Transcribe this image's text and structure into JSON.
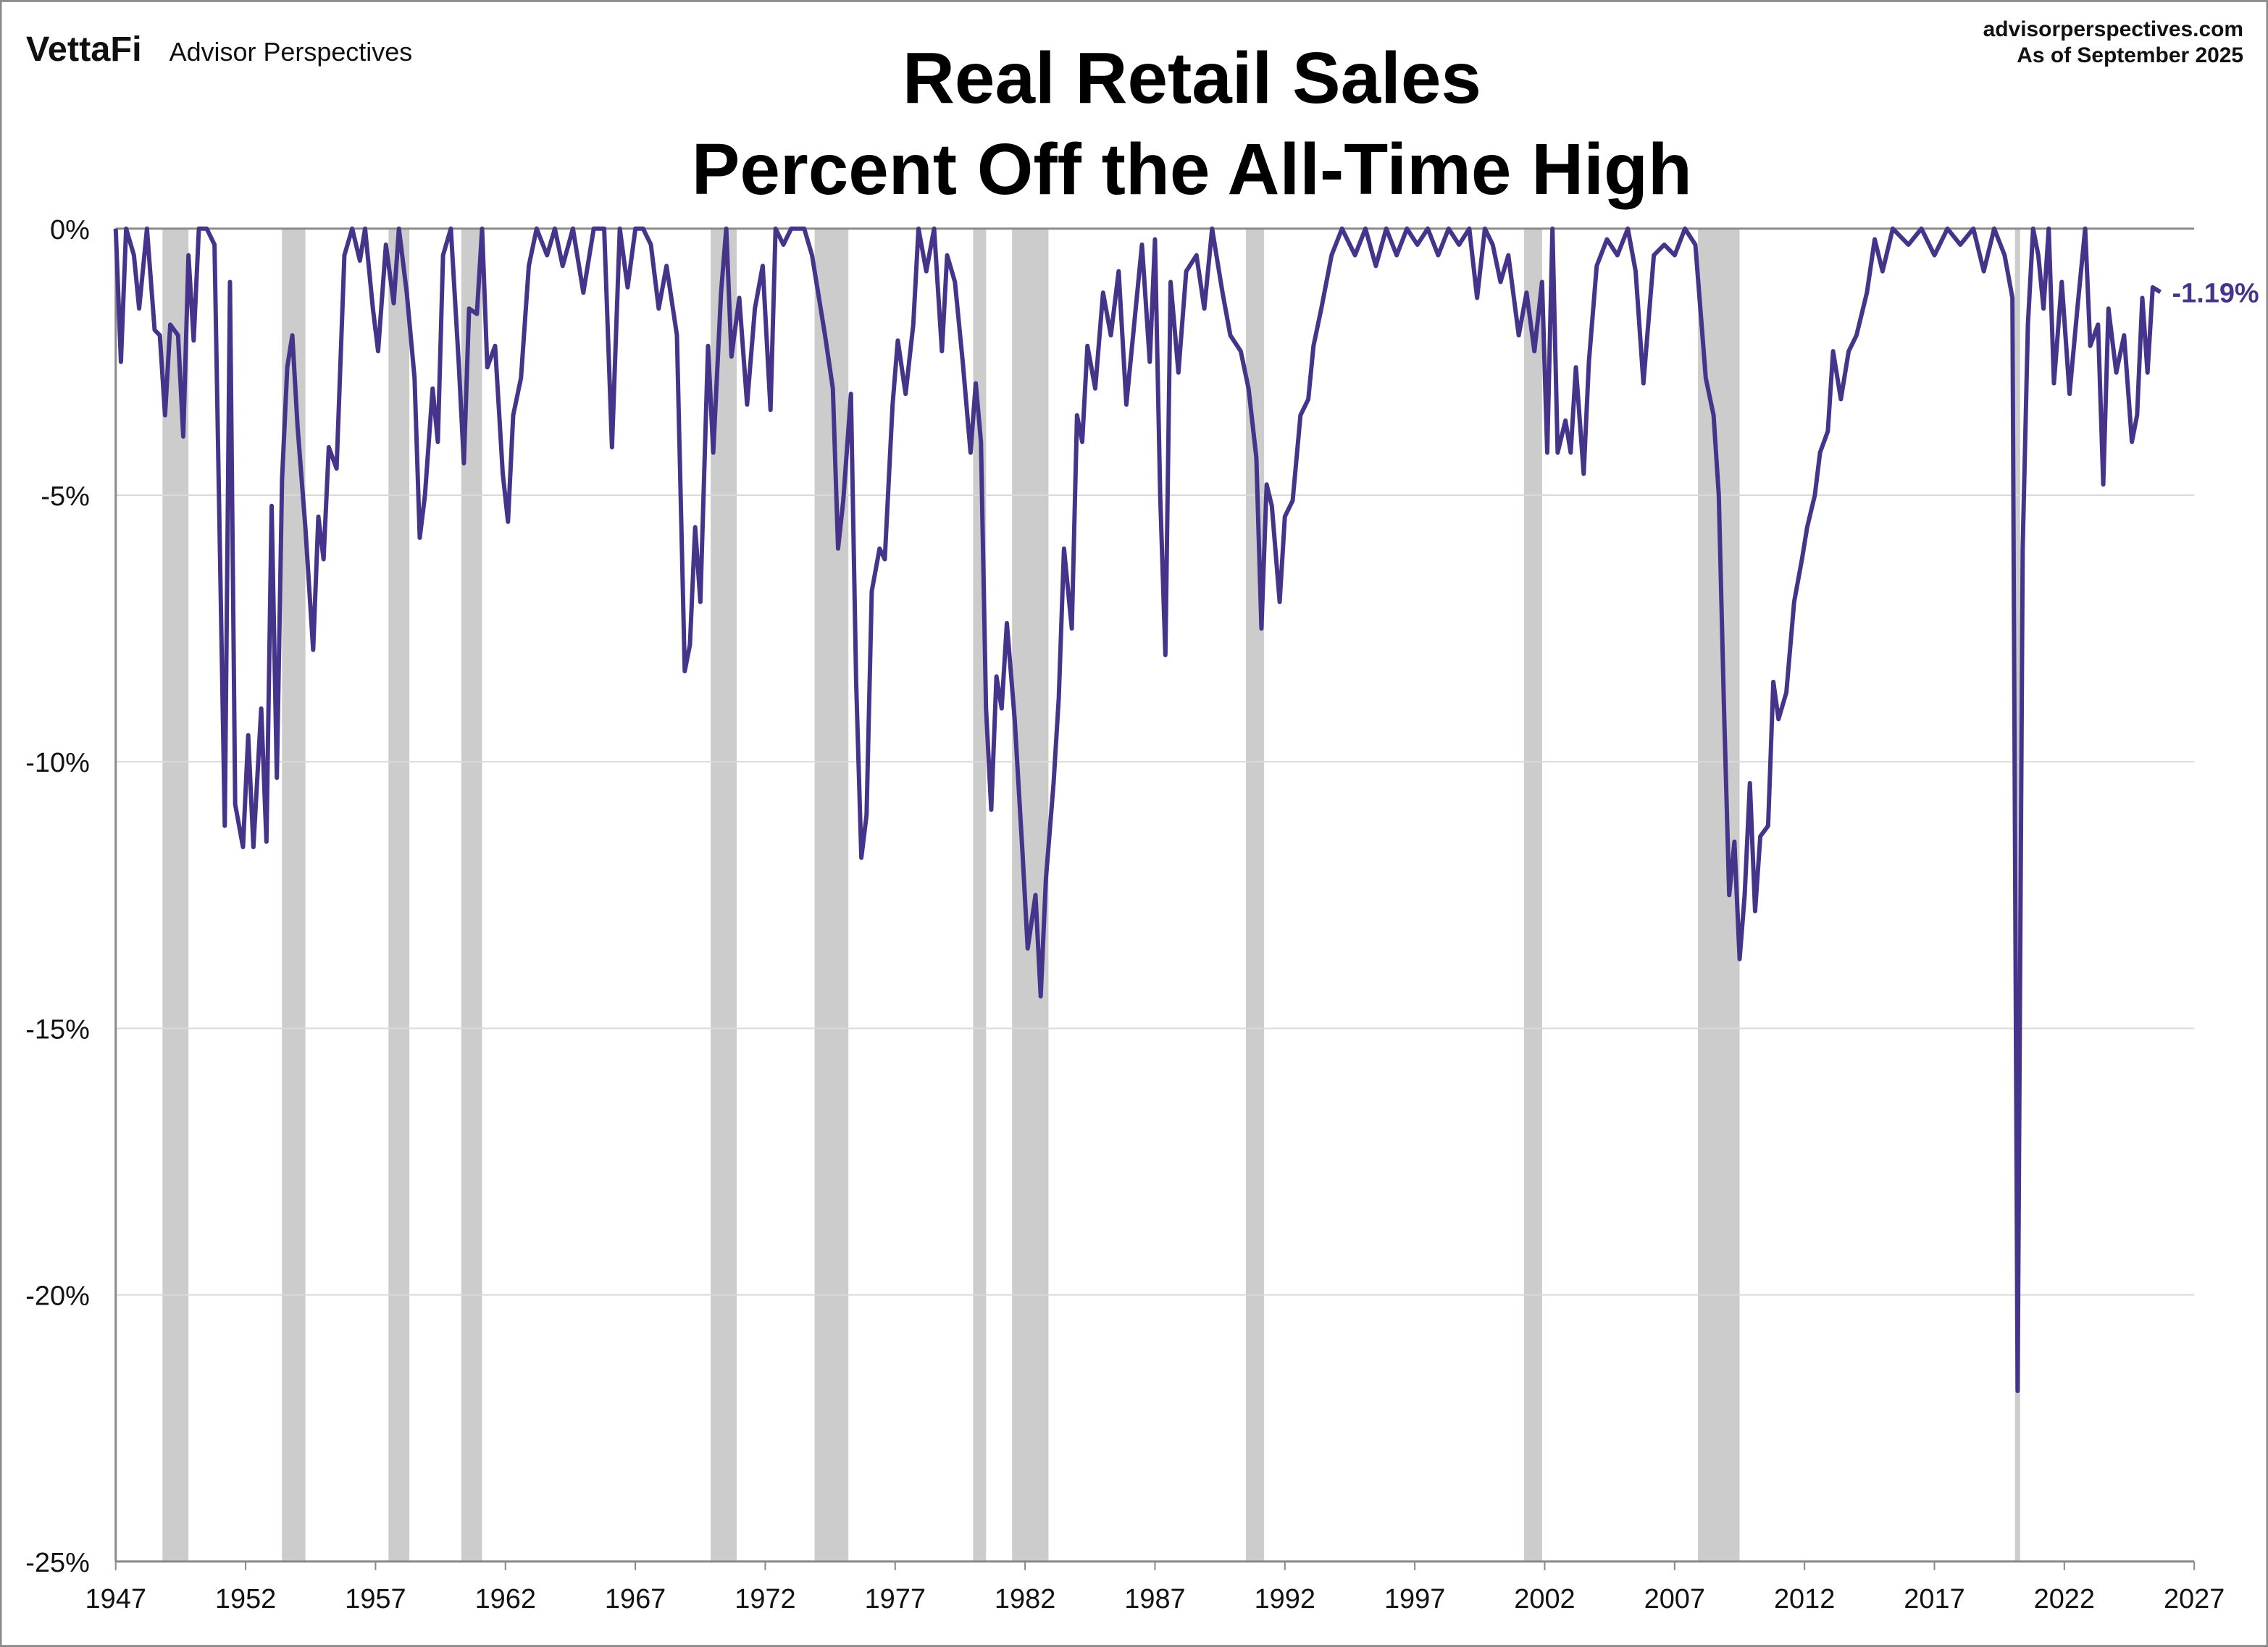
{
  "header": {
    "logo_text": "VettaFi",
    "brand": "Advisor Perspectives",
    "site": "advisorperspectives.com",
    "as_of": "As of September 2025"
  },
  "chart_data": {
    "type": "line",
    "title": "Real Retail Sales",
    "subtitle": "Percent Off the All-Time High",
    "xlim": [
      1947,
      2027
    ],
    "ylim": [
      -25,
      0
    ],
    "x_ticks": [
      1947,
      1952,
      1957,
      1962,
      1967,
      1972,
      1977,
      1982,
      1987,
      1992,
      1997,
      2002,
      2007,
      2012,
      2017,
      2022,
      2027
    ],
    "y_ticks": [
      0,
      -5,
      -10,
      -15,
      -20,
      -25
    ],
    "y_tick_labels": [
      "0%",
      "-5%",
      "-10%",
      "-15%",
      "-20%",
      "-25%"
    ],
    "grid": "horizontal",
    "line_color": "#45348a",
    "recession_color": "#cccccc",
    "last_value_label": "-1.19%",
    "recessions": [
      [
        1948.8,
        1949.8
      ],
      [
        1953.4,
        1954.3
      ],
      [
        1957.5,
        1958.3
      ],
      [
        1960.3,
        1961.1
      ],
      [
        1969.9,
        1970.9
      ],
      [
        1973.9,
        1975.2
      ],
      [
        1980.0,
        1980.5
      ],
      [
        1981.5,
        1982.9
      ],
      [
        1990.5,
        1991.2
      ],
      [
        2001.2,
        2001.9
      ],
      [
        2007.9,
        2009.5
      ],
      [
        2020.1,
        2020.3
      ]
    ],
    "series": [
      {
        "x": [
          1947.0,
          1947.2,
          1947.4,
          1947.7,
          1947.9,
          1948.2,
          1948.5,
          1948.7,
          1948.9,
          1949.1,
          1949.4,
          1949.6,
          1949.8,
          1950.0,
          1950.2,
          1950.5,
          1950.8,
          1951.2,
          1951.4,
          1951.6,
          1951.9,
          1952.1,
          1952.3,
          1952.6,
          1952.8,
          1953.0,
          1953.2,
          1953.4,
          1953.6,
          1953.8,
          1954.0,
          1954.3,
          1954.6,
          1954.8,
          1955.0,
          1955.2,
          1955.5,
          1955.8,
          1956.1,
          1956.4,
          1956.6,
          1956.9,
          1957.1,
          1957.4,
          1957.7,
          1957.9,
          1958.2,
          1958.5,
          1958.7,
          1958.9,
          1959.2,
          1959.4,
          1959.6,
          1959.9,
          1960.2,
          1960.4,
          1960.6,
          1960.9,
          1961.1,
          1961.3,
          1961.6,
          1961.9,
          1962.1,
          1962.3,
          1962.6,
          1962.9,
          1963.2,
          1963.6,
          1963.9,
          1964.2,
          1964.6,
          1965.0,
          1965.4,
          1965.8,
          1966.1,
          1966.4,
          1966.7,
          1967.0,
          1967.3,
          1967.6,
          1967.9,
          1968.2,
          1968.6,
          1968.9,
          1969.1,
          1969.3,
          1969.5,
          1969.8,
          1970.0,
          1970.3,
          1970.5,
          1970.7,
          1971.0,
          1971.3,
          1971.6,
          1971.9,
          1972.2,
          1972.4,
          1972.7,
          1973.0,
          1973.5,
          1973.8,
          1974.3,
          1974.6,
          1974.8,
          1975.0,
          1975.3,
          1975.5,
          1975.7,
          1975.9,
          1976.1,
          1976.4,
          1976.6,
          1976.9,
          1977.1,
          1977.4,
          1977.7,
          1977.9,
          1978.2,
          1978.5,
          1978.8,
          1979.0,
          1979.3,
          1979.6,
          1979.9,
          1980.1,
          1980.3,
          1980.5,
          1980.7,
          1980.9,
          1981.1,
          1981.3,
          1981.6,
          1981.9,
          1982.1,
          1982.4,
          1982.6,
          1982.8,
          1983.1,
          1983.3,
          1983.5,
          1983.8,
          1984.0,
          1984.2,
          1984.4,
          1984.7,
          1985.0,
          1985.3,
          1985.6,
          1985.9,
          1986.2,
          1986.5,
          1986.8,
          1987.0,
          1987.2,
          1987.4,
          1987.6,
          1987.9,
          1988.2,
          1988.6,
          1988.9,
          1989.2,
          1989.6,
          1989.9,
          1990.3,
          1990.6,
          1990.9,
          1991.1,
          1991.3,
          1991.5,
          1991.8,
          1992.0,
          1992.3,
          1992.6,
          1992.9,
          1993.1,
          1993.4,
          1993.8,
          1994.2,
          1994.7,
          1995.1,
          1995.5,
          1995.9,
          1996.3,
          1996.7,
          1997.1,
          1997.5,
          1997.9,
          1998.3,
          1998.7,
          1999.1,
          1999.4,
          1999.7,
          2000.0,
          2000.3,
          2000.6,
          2001.0,
          2001.3,
          2001.6,
          2001.9,
          2002.1,
          2002.3,
          2002.5,
          2002.8,
          2003.0,
          2003.2,
          2003.5,
          2003.7,
          2004.0,
          2004.4,
          2004.8,
          2005.2,
          2005.5,
          2005.8,
          2006.2,
          2006.6,
          2007.0,
          2007.4,
          2007.8,
          2008.2,
          2008.5,
          2008.7,
          2008.9,
          2009.1,
          2009.3,
          2009.5,
          2009.7,
          2009.9,
          2010.1,
          2010.3,
          2010.6,
          2010.8,
          2011.0,
          2011.3,
          2011.6,
          2011.9,
          2012.1,
          2012.4,
          2012.6,
          2012.9,
          2013.1,
          2013.4,
          2013.7,
          2014.0,
          2014.4,
          2014.7,
          2015.0,
          2015.4,
          2016.0,
          2016.5,
          2017.0,
          2017.5,
          2018.0,
          2018.5,
          2018.9,
          2019.3,
          2019.7,
          2020.0,
          2020.2,
          2020.4,
          2020.6,
          2020.8,
          2021.0,
          2021.2,
          2021.4,
          2021.6,
          2021.9,
          2022.2,
          2022.5,
          2022.8,
          2023.0,
          2023.3,
          2023.5,
          2023.7,
          2024.0,
          2024.3,
          2024.6,
          2024.8,
          2025.0,
          2025.2,
          2025.4,
          2025.7
        ],
        "y": [
          0,
          -2.5,
          0,
          -0.5,
          -1.5,
          0,
          -1.9,
          -2.0,
          -3.5,
          -1.8,
          -2.0,
          -3.9,
          -0.5,
          -2.1,
          0,
          0,
          -0.3,
          -11.2,
          -1.0,
          -10.8,
          -11.6,
          -9.5,
          -11.6,
          -9.0,
          -11.5,
          -5.2,
          -10.3,
          -4.7,
          -2.6,
          -2.0,
          -3.7,
          -5.6,
          -7.9,
          -5.4,
          -6.2,
          -4.1,
          -4.5,
          -0.5,
          0,
          -0.6,
          0,
          -1.5,
          -2.3,
          -0.3,
          -1.4,
          0,
          -1.2,
          -2.8,
          -5.8,
          -5.0,
          -3.0,
          -4.0,
          -0.5,
          0,
          -2.5,
          -4.4,
          -1.5,
          -1.6,
          0,
          -2.6,
          -2.2,
          -4.6,
          -5.5,
          -3.5,
          -2.8,
          -0.7,
          0,
          -0.5,
          0,
          -0.7,
          0,
          -1.2,
          0,
          0,
          -4.1,
          0,
          -1.1,
          0,
          0,
          -0.3,
          -1.5,
          -0.7,
          -2.0,
          -8.3,
          -7.8,
          -5.6,
          -7.0,
          -2.2,
          -4.2,
          -1.2,
          0,
          -2.4,
          -1.3,
          -3.3,
          -1.5,
          -0.7,
          -3.4,
          0,
          -0.3,
          0,
          0,
          -0.5,
          -2.0,
          -3.0,
          -6.0,
          -5.1,
          -3.1,
          -8.5,
          -11.8,
          -11.0,
          -6.8,
          -6.0,
          -6.2,
          -3.3,
          -2.1,
          -3.1,
          -1.8,
          0,
          -0.8,
          0,
          -2.3,
          -0.5,
          -1.0,
          -2.5,
          -4.2,
          -2.9,
          -4.0,
          -9.0,
          -10.9,
          -8.4,
          -9.0,
          -7.4,
          -9.2,
          -11.7,
          -13.5,
          -12.5,
          -14.4,
          -12.2,
          -10.4,
          -8.8,
          -6.0,
          -7.5,
          -3.5,
          -4.0,
          -2.2,
          -3.0,
          -1.2,
          -2.0,
          -0.8,
          -3.3,
          -1.8,
          -0.3,
          -2.5,
          -0.2,
          -5.0,
          -8.0,
          -1.0,
          -2.7,
          -0.8,
          -0.5,
          -1.5,
          0,
          -1.2,
          -2.0,
          -2.3,
          -3.0,
          -4.3,
          -7.5,
          -4.8,
          -5.2,
          -7.0,
          -5.4,
          -5.1,
          -3.5,
          -3.2,
          -2.2,
          -1.5,
          -0.5,
          0,
          -0.5,
          0,
          -0.7,
          0,
          -0.5,
          0,
          -0.3,
          0,
          -0.5,
          0,
          -0.3,
          0,
          -1.3,
          0,
          -0.3,
          -1.0,
          -0.5,
          -2.0,
          -1.2,
          -2.3,
          -1.0,
          -4.2,
          0,
          -4.2,
          -3.6,
          -4.2,
          -2.6,
          -4.6,
          -2.5,
          -0.7,
          -0.2,
          -0.5,
          0,
          -0.8,
          -2.9,
          -0.5,
          -0.3,
          -0.5,
          0,
          -0.3,
          -2.8,
          -3.5,
          -5.0,
          -9.0,
          -12.5,
          -11.5,
          -13.7,
          -12.5,
          -10.4,
          -12.8,
          -11.4,
          -11.2,
          -8.5,
          -9.2,
          -8.7,
          -7.0,
          -6.2,
          -5.6,
          -5.0,
          -4.2,
          -3.8,
          -2.3,
          -3.2,
          -2.3,
          -2.0,
          -1.2,
          -0.2,
          -0.8,
          0,
          -0.3,
          0,
          -0.5,
          0,
          -0.3,
          0,
          -0.8,
          0,
          -0.5,
          -1.3,
          -21.8,
          -6.0,
          -1.8,
          0,
          -0.5,
          -1.5,
          0,
          -2.9,
          -1.0,
          -3.1,
          -1.5,
          0,
          -2.2,
          -1.8,
          -4.8,
          -1.5,
          -2.7,
          -2.0,
          -4.0,
          -3.5,
          -1.3,
          -2.7,
          -1.1,
          -1.19
        ]
      }
    ]
  }
}
